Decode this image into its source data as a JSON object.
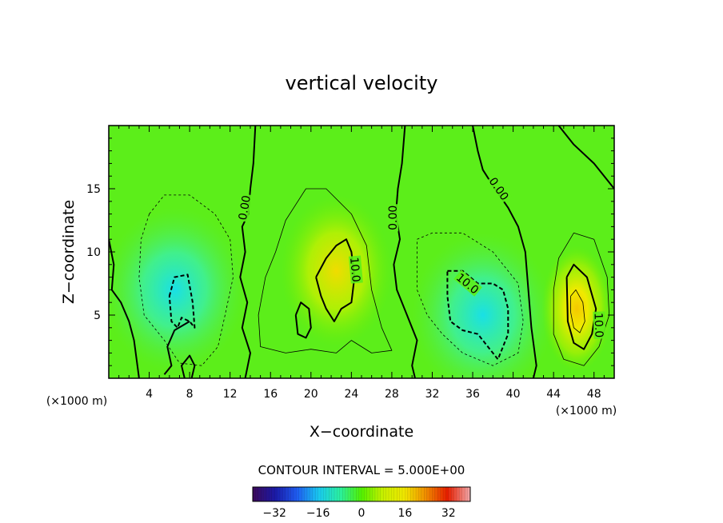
{
  "chart_data": {
    "type": "heatmap",
    "title": "vertical velocity",
    "xlabel": "X−coordinate",
    "ylabel": "Z−coordinate",
    "x_unit_left": "(×1000 m)",
    "x_unit_right": "(×1000 m)",
    "xlim": [
      0,
      50
    ],
    "ylim": [
      0,
      20
    ],
    "x_ticks": [
      4,
      8,
      12,
      16,
      20,
      24,
      28,
      32,
      36,
      40,
      44,
      48
    ],
    "y_ticks": [
      5,
      10,
      15
    ],
    "contour_interval_text": "CONTOUR INTERVAL = 5.000E+00",
    "contour_labels": [
      "0.00",
      "10.0",
      "0.00",
      "10.0",
      "0.00",
      "10.0"
    ],
    "colorbar": {
      "range": [
        -40,
        40
      ],
      "ticks": [
        "−32",
        "−16",
        "0",
        "16",
        "32"
      ],
      "tick_values": [
        -32,
        -16,
        0,
        16,
        32
      ]
    },
    "colormap_stops": [
      "#3a0a5e",
      "#1a1aa8",
      "#1e5cf0",
      "#19c8f0",
      "#2af0a0",
      "#52f000",
      "#c8f000",
      "#f0e600",
      "#f08c00",
      "#e61e00",
      "#f0a0a0"
    ],
    "features": [
      {
        "kind": "downdraft",
        "x": 6.5,
        "z": 7,
        "peak": -15
      },
      {
        "kind": "updraft",
        "x": 22.5,
        "z": 8.5,
        "peak": 14
      },
      {
        "kind": "downdraft",
        "x": 37,
        "z": 5,
        "peak": -16
      },
      {
        "kind": "updraft",
        "x": 46.3,
        "z": 5.5,
        "peak": 24
      }
    ]
  }
}
